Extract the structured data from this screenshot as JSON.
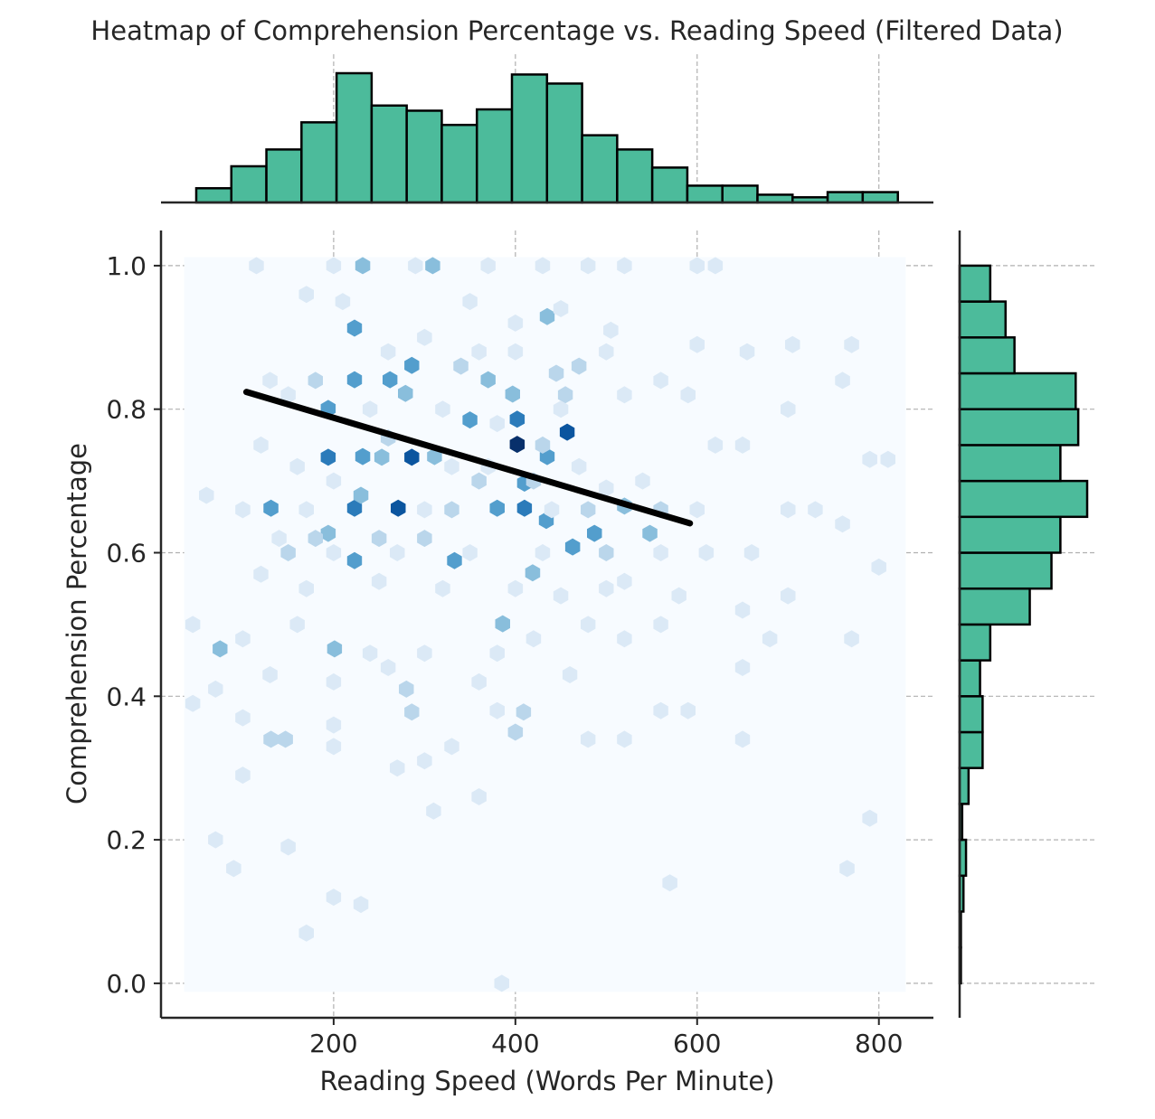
{
  "chart_data": {
    "type": "heatmap",
    "subtype": "hexbin-jointplot",
    "title": "Heatmap of Comprehension Percentage vs. Reading Speed (Filtered Data)",
    "xlabel": "Reading Speed (Words Per Minute)",
    "ylabel": "Comprehension Percentage",
    "xlim": [
      10,
      860
    ],
    "ylim": [
      -0.048,
      1.049
    ],
    "xticks": [
      200,
      400,
      600,
      800
    ],
    "xtick_labels": [
      "200",
      "400",
      "600",
      "800"
    ],
    "yticks": [
      0.0,
      0.2,
      0.4,
      0.6,
      0.8,
      1.0
    ],
    "ytick_labels": [
      "0.0",
      "0.2",
      "0.4",
      "0.6",
      "0.8",
      "1.0"
    ],
    "grid": true,
    "colormap": "Blues",
    "colors": {
      "histogram": "#4cbb9b",
      "edge": "#000000",
      "regression": "#000000",
      "background_hex": "#f7fbff"
    },
    "hex_extent": {
      "x": [
        45,
        820
      ],
      "y": [
        0.0,
        1.0
      ]
    },
    "regression_line": {
      "x": [
        104,
        592
      ],
      "y": [
        0.824,
        0.641
      ]
    },
    "hex_cells": [
      [
        223,
        0.913,
        4
      ],
      [
        286,
        0.861,
        4
      ],
      [
        194,
        0.801,
        4
      ],
      [
        223,
        0.841,
        4
      ],
      [
        262,
        0.841,
        4
      ],
      [
        350,
        0.785,
        4
      ],
      [
        402,
        0.751,
        8
      ],
      [
        402,
        0.786,
        5
      ],
      [
        457,
        0.768,
        6
      ],
      [
        286,
        0.733,
        6
      ],
      [
        194,
        0.733,
        5
      ],
      [
        271,
        0.662,
        6
      ],
      [
        131,
        0.662,
        4
      ],
      [
        223,
        0.662,
        5
      ],
      [
        410,
        0.697,
        4
      ],
      [
        410,
        0.662,
        5
      ],
      [
        380,
        0.662,
        4
      ],
      [
        434,
        0.645,
        4
      ],
      [
        487,
        0.627,
        4
      ],
      [
        463,
        0.608,
        4
      ],
      [
        333,
        0.589,
        4
      ],
      [
        223,
        0.589,
        4
      ],
      [
        232,
        0.734,
        4
      ],
      [
        309,
        1.0,
        3
      ],
      [
        232,
        1.0,
        3
      ],
      [
        397,
        0.821,
        3
      ],
      [
        75,
        0.466,
        3
      ],
      [
        201,
        0.466,
        3
      ],
      [
        386,
        0.501,
        3
      ],
      [
        419,
        0.572,
        3
      ],
      [
        435,
        0.929,
        3
      ],
      [
        279,
        0.822,
        3
      ],
      [
        194,
        0.627,
        3
      ],
      [
        253,
        0.733,
        3
      ],
      [
        435,
        0.734,
        4
      ],
      [
        311,
        0.734,
        3
      ],
      [
        520,
        0.665,
        3
      ],
      [
        548,
        0.627,
        3
      ],
      [
        370,
        0.841,
        3
      ],
      [
        230,
        0.68,
        3
      ],
      [
        286,
        0.378,
        2
      ],
      [
        409,
        0.378,
        2
      ],
      [
        147,
        0.34,
        2
      ],
      [
        131,
        0.34,
        2
      ],
      [
        445,
        0.85,
        2
      ],
      [
        455,
        0.82,
        2
      ],
      [
        430,
        0.75,
        2
      ],
      [
        420,
        0.7,
        2
      ],
      [
        360,
        0.7,
        2
      ],
      [
        300,
        0.62,
        2
      ],
      [
        250,
        0.62,
        2
      ],
      [
        330,
        0.66,
        2
      ],
      [
        480,
        0.66,
        2
      ],
      [
        500,
        0.6,
        2
      ],
      [
        180,
        0.62,
        2
      ],
      [
        260,
        0.76,
        2
      ],
      [
        340,
        0.86,
        2
      ],
      [
        470,
        0.86,
        2
      ],
      [
        180,
        0.84,
        2
      ],
      [
        150,
        0.6,
        2
      ],
      [
        560,
        0.66,
        2
      ],
      [
        280,
        0.41,
        2
      ],
      [
        400,
        0.35,
        2
      ],
      [
        115,
        1.0,
        1
      ],
      [
        200,
        1.0,
        1
      ],
      [
        290,
        1.0,
        1
      ],
      [
        370,
        1.0,
        1
      ],
      [
        430,
        1.0,
        1
      ],
      [
        480,
        1.0,
        1
      ],
      [
        520,
        1.0,
        1
      ],
      [
        600,
        1.0,
        1
      ],
      [
        620,
        1.0,
        1
      ],
      [
        170,
        0.96,
        1
      ],
      [
        210,
        0.95,
        1
      ],
      [
        350,
        0.95,
        1
      ],
      [
        400,
        0.92,
        1
      ],
      [
        450,
        0.94,
        1
      ],
      [
        505,
        0.91,
        1
      ],
      [
        300,
        0.9,
        1
      ],
      [
        260,
        0.88,
        1
      ],
      [
        360,
        0.88,
        1
      ],
      [
        400,
        0.88,
        1
      ],
      [
        500,
        0.88,
        1
      ],
      [
        600,
        0.89,
        1
      ],
      [
        655,
        0.88,
        1
      ],
      [
        705,
        0.89,
        1
      ],
      [
        770,
        0.89,
        1
      ],
      [
        130,
        0.84,
        1
      ],
      [
        150,
        0.82,
        1
      ],
      [
        240,
        0.8,
        1
      ],
      [
        320,
        0.8,
        1
      ],
      [
        380,
        0.78,
        1
      ],
      [
        450,
        0.8,
        1
      ],
      [
        520,
        0.82,
        1
      ],
      [
        560,
        0.84,
        1
      ],
      [
        590,
        0.82,
        1
      ],
      [
        700,
        0.8,
        1
      ],
      [
        620,
        0.75,
        1
      ],
      [
        650,
        0.75,
        1
      ],
      [
        760,
        0.84,
        1
      ],
      [
        790,
        0.73,
        1
      ],
      [
        810,
        0.73,
        1
      ],
      [
        120,
        0.75,
        1
      ],
      [
        160,
        0.72,
        1
      ],
      [
        200,
        0.7,
        1
      ],
      [
        330,
        0.72,
        1
      ],
      [
        370,
        0.72,
        1
      ],
      [
        470,
        0.72,
        1
      ],
      [
        500,
        0.69,
        1
      ],
      [
        540,
        0.7,
        1
      ],
      [
        60,
        0.68,
        1
      ],
      [
        100,
        0.66,
        1
      ],
      [
        170,
        0.66,
        1
      ],
      [
        300,
        0.66,
        1
      ],
      [
        440,
        0.66,
        1
      ],
      [
        600,
        0.66,
        1
      ],
      [
        700,
        0.66,
        1
      ],
      [
        730,
        0.66,
        1
      ],
      [
        760,
        0.64,
        1
      ],
      [
        140,
        0.62,
        1
      ],
      [
        200,
        0.6,
        1
      ],
      [
        270,
        0.6,
        1
      ],
      [
        350,
        0.6,
        1
      ],
      [
        430,
        0.6,
        1
      ],
      [
        520,
        0.56,
        1
      ],
      [
        560,
        0.6,
        1
      ],
      [
        610,
        0.6,
        1
      ],
      [
        660,
        0.6,
        1
      ],
      [
        120,
        0.57,
        1
      ],
      [
        170,
        0.55,
        1
      ],
      [
        250,
        0.56,
        1
      ],
      [
        320,
        0.55,
        1
      ],
      [
        400,
        0.55,
        1
      ],
      [
        450,
        0.54,
        1
      ],
      [
        500,
        0.55,
        1
      ],
      [
        580,
        0.54,
        1
      ],
      [
        650,
        0.52,
        1
      ],
      [
        700,
        0.54,
        1
      ],
      [
        800,
        0.58,
        1
      ],
      [
        45,
        0.5,
        1
      ],
      [
        100,
        0.48,
        1
      ],
      [
        160,
        0.5,
        1
      ],
      [
        240,
        0.46,
        1
      ],
      [
        300,
        0.46,
        1
      ],
      [
        380,
        0.46,
        1
      ],
      [
        420,
        0.48,
        1
      ],
      [
        480,
        0.5,
        1
      ],
      [
        520,
        0.48,
        1
      ],
      [
        560,
        0.5,
        1
      ],
      [
        680,
        0.48,
        1
      ],
      [
        770,
        0.48,
        1
      ],
      [
        70,
        0.41,
        1
      ],
      [
        130,
        0.43,
        1
      ],
      [
        200,
        0.42,
        1
      ],
      [
        260,
        0.44,
        1
      ],
      [
        360,
        0.42,
        1
      ],
      [
        380,
        0.38,
        1
      ],
      [
        460,
        0.43,
        1
      ],
      [
        560,
        0.38,
        1
      ],
      [
        590,
        0.38,
        1
      ],
      [
        650,
        0.44,
        1
      ],
      [
        45,
        0.39,
        1
      ],
      [
        100,
        0.37,
        1
      ],
      [
        200,
        0.36,
        1
      ],
      [
        300,
        0.31,
        1
      ],
      [
        330,
        0.33,
        1
      ],
      [
        480,
        0.34,
        1
      ],
      [
        520,
        0.34,
        1
      ],
      [
        650,
        0.34,
        1
      ],
      [
        200,
        0.33,
        1
      ],
      [
        100,
        0.29,
        1
      ],
      [
        270,
        0.3,
        1
      ],
      [
        310,
        0.24,
        1
      ],
      [
        360,
        0.26,
        1
      ],
      [
        790,
        0.23,
        1
      ],
      [
        70,
        0.2,
        1
      ],
      [
        150,
        0.19,
        1
      ],
      [
        90,
        0.16,
        1
      ],
      [
        200,
        0.12,
        1
      ],
      [
        230,
        0.11,
        1
      ],
      [
        570,
        0.14,
        1
      ],
      [
        765,
        0.16,
        1
      ],
      [
        170,
        0.07,
        1
      ],
      [
        385,
        0.0,
        1
      ]
    ],
    "top_histogram": {
      "bin_edges": [
        48.8,
        87.4,
        126.0,
        164.6,
        203.2,
        241.8,
        280.4,
        319.0,
        357.6,
        396.2,
        434.8,
        473.4,
        512.0,
        550.6,
        589.2,
        627.8,
        666.4,
        705.0,
        743.6,
        782.2,
        820.9
      ],
      "counts": [
        11,
        28,
        41,
        62,
        100,
        75,
        71,
        60,
        72,
        99,
        92,
        52,
        41,
        27,
        13,
        13,
        6,
        4,
        8,
        8
      ]
    },
    "right_histogram": {
      "bin_edges": [
        0.0,
        0.05,
        0.1,
        0.15,
        0.2,
        0.25,
        0.3,
        0.35,
        0.4,
        0.45,
        0.5,
        0.55,
        0.6,
        0.65,
        0.7,
        0.75,
        0.8,
        0.85,
        0.9,
        0.95,
        1.0
      ],
      "counts": [
        1,
        1,
        3,
        5,
        2,
        7,
        18,
        18,
        16,
        24,
        55,
        72,
        79,
        100,
        79,
        93,
        91,
        43,
        36,
        24
      ]
    }
  }
}
